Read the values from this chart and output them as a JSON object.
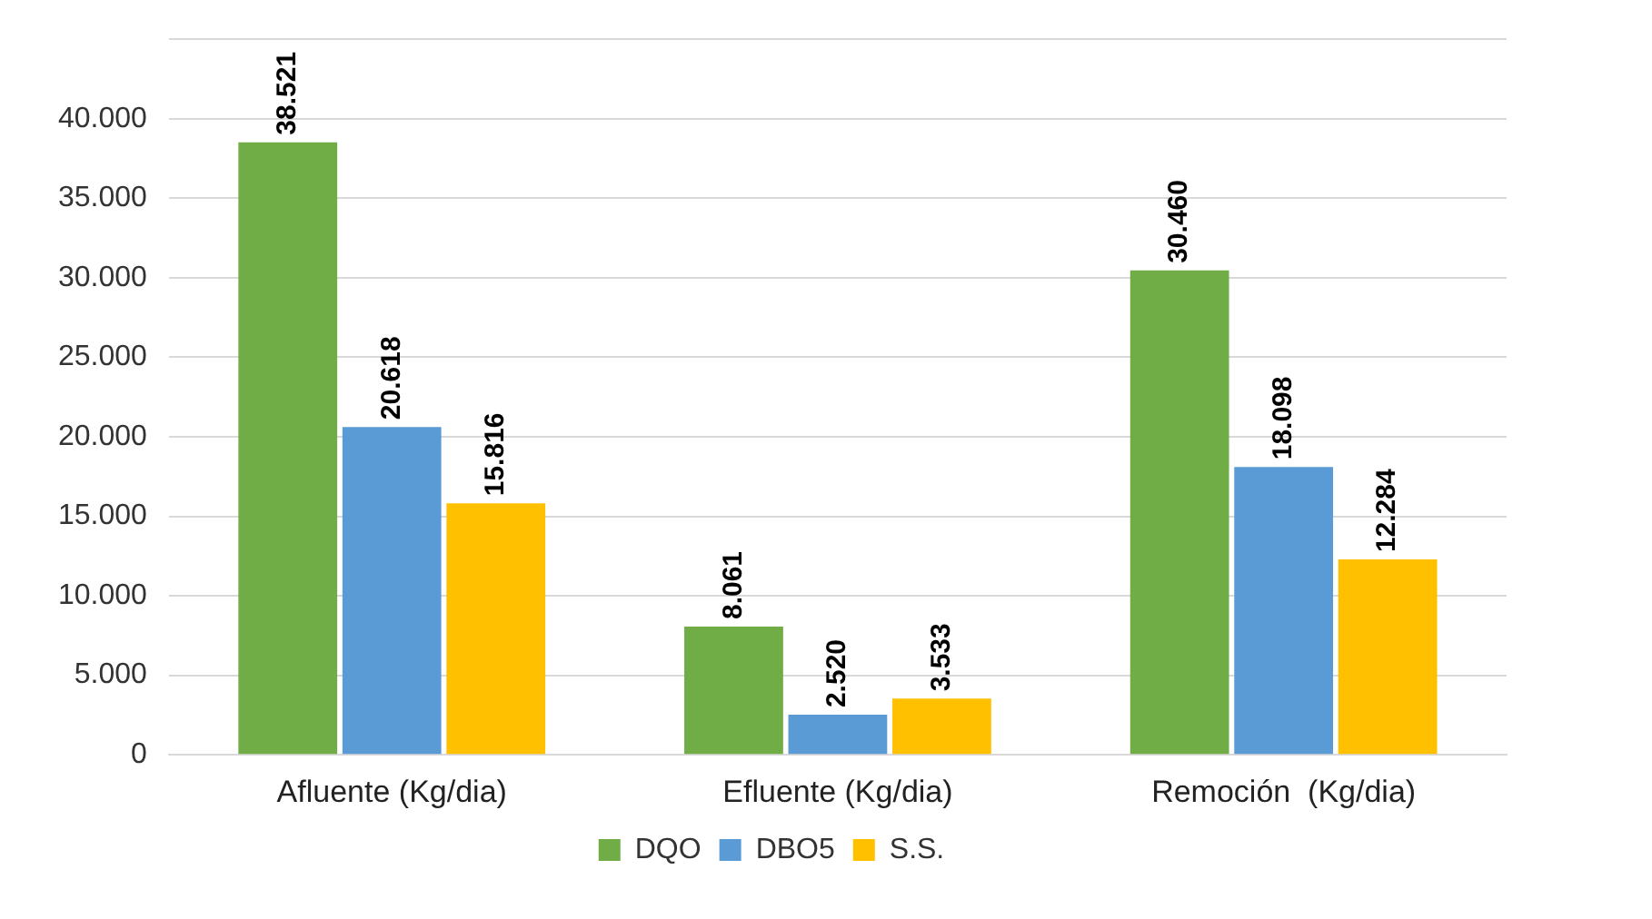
{
  "chart_data": {
    "type": "bar",
    "categories": [
      "Afluente (Kg/dia)",
      "Efluente (Kg/dia)",
      "Remoción  (Kg/dia)"
    ],
    "series": [
      {
        "name": "DQO",
        "color": "#70ad47",
        "values": [
          38521,
          8061,
          30460
        ],
        "value_labels": [
          "38.521",
          "8.061",
          "30.460"
        ]
      },
      {
        "name": "DBO5",
        "color": "#5b9bd5",
        "values": [
          20618,
          2520,
          18098
        ],
        "value_labels": [
          "20.618",
          "2.520",
          "18.098"
        ]
      },
      {
        "name": "S.S.",
        "color": "#ffc000",
        "values": [
          15816,
          3533,
          12284
        ],
        "value_labels": [
          "15.816",
          "3.533",
          "12.284"
        ]
      }
    ],
    "ylim": [
      0,
      45000
    ],
    "yticks": [
      {
        "value": 0,
        "label": "0"
      },
      {
        "value": 5000,
        "label": "5.000"
      },
      {
        "value": 10000,
        "label": "10.000"
      },
      {
        "value": 15000,
        "label": "15.000"
      },
      {
        "value": 20000,
        "label": "20.000"
      },
      {
        "value": 25000,
        "label": "25.000"
      },
      {
        "value": 30000,
        "label": "30.000"
      },
      {
        "value": 35000,
        "label": "35.000"
      },
      {
        "value": 40000,
        "label": "40.000"
      },
      {
        "value": 45000,
        "label": null
      }
    ],
    "grid": "y",
    "legend": "bottom"
  }
}
